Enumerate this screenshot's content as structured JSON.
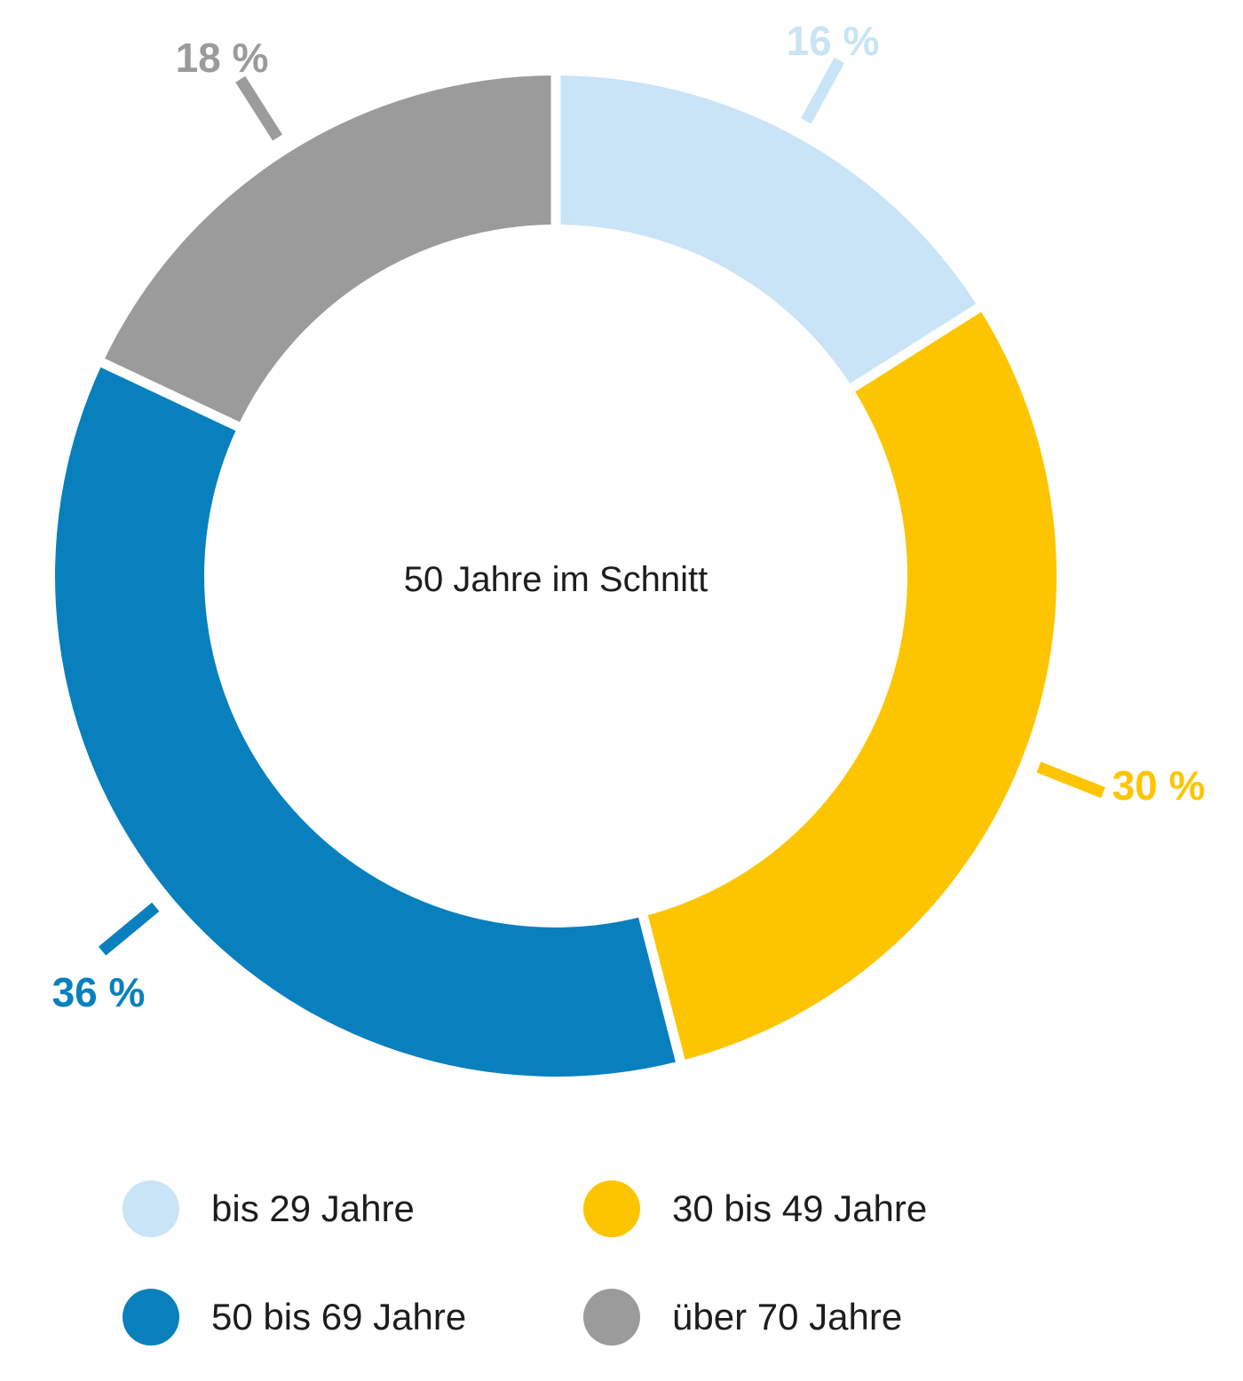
{
  "chart_data": {
    "type": "pie",
    "subtype": "donut",
    "center_label": "50 Jahre im Schnitt",
    "unit": "%",
    "direction": "clockwise",
    "start_angle_deg": 0,
    "legend_position": "bottom",
    "segments": [
      {
        "label": "bis 29 Jahre",
        "value": 16,
        "pct_label": "16 %",
        "color": "#C8E4F6"
      },
      {
        "label": "30 bis 49 Jahre",
        "value": 30,
        "pct_label": "30 %",
        "color": "#FDC500"
      },
      {
        "label": "50 bis 69 Jahre",
        "value": 36,
        "pct_label": "36 %",
        "color": "#0880BE"
      },
      {
        "label": "über 70 Jahre",
        "value": 18,
        "pct_label": "18 %",
        "color": "#9B9B9B"
      }
    ]
  },
  "colors": {
    "background": "#FFFFFF",
    "text": "#1D1D1B",
    "separator": "#FFFFFF"
  }
}
